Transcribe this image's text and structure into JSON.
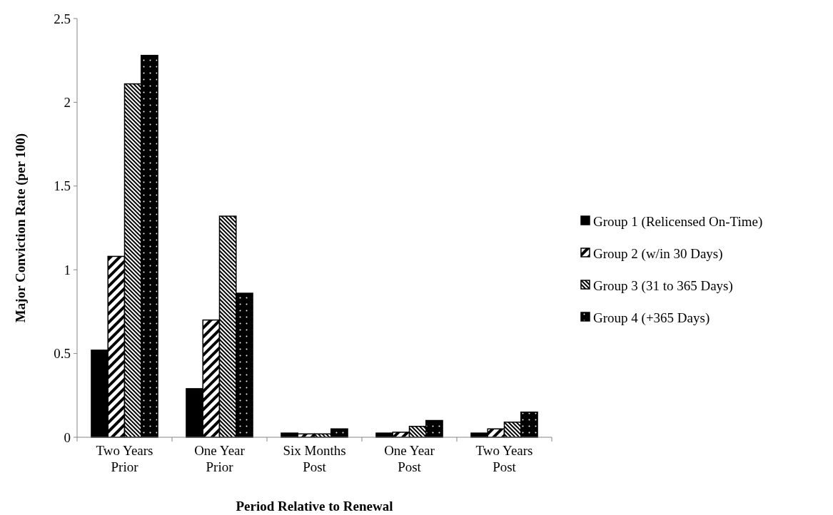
{
  "chart_data": {
    "type": "bar",
    "xlabel": "Period Relative to Renewal",
    "ylabel": "Major Conviction Rate (per 100)",
    "categories": [
      "Two Years\nPrior",
      "One Year\nPrior",
      "Six Months\nPost",
      "One Year\nPost",
      "Two Years\nPost"
    ],
    "series": [
      {
        "name": "Group 1 (Relicensed On-Time)",
        "color": "#000000",
        "values": [
          0.52,
          0.29,
          0.025,
          0.025,
          0.025
        ]
      },
      {
        "name": "Group 2 (w/in 30 Days)",
        "color": "#000000",
        "values": [
          1.08,
          0.7,
          0.02,
          0.03,
          0.05
        ]
      },
      {
        "name": "Group 3 (31 to 365 Days)",
        "color": "#000000",
        "values": [
          2.11,
          1.32,
          0.02,
          0.065,
          0.09
        ]
      },
      {
        "name": "Group 4 (+365 Days)",
        "color": "#000000",
        "values": [
          2.28,
          0.86,
          0.05,
          0.1,
          0.15
        ]
      }
    ],
    "ylim": [
      0,
      2.5
    ],
    "yticks": [
      0,
      0.5,
      1,
      1.5,
      2,
      2.5
    ],
    "grid": false,
    "legend": "right"
  }
}
